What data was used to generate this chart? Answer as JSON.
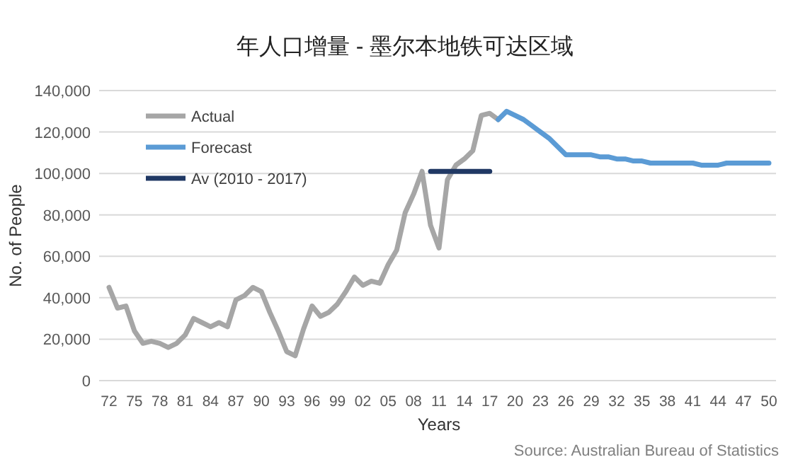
{
  "chart_data": {
    "type": "line",
    "title": "年人口增量 - 墨尔本地铁可达区域",
    "xlabel": "Years",
    "ylabel": "No. of People",
    "annotations": [
      "Source: Australian Bureau of Statistics"
    ],
    "categories": [
      "72",
      null,
      null,
      "75",
      null,
      null,
      "78",
      null,
      null,
      "81",
      null,
      null,
      "84",
      null,
      null,
      "87",
      null,
      null,
      "90",
      null,
      null,
      "93",
      null,
      null,
      "96",
      null,
      null,
      "99",
      null,
      null,
      "02",
      null,
      null,
      "05",
      null,
      null,
      "08",
      null,
      null,
      "11",
      null,
      null,
      "14",
      null,
      null,
      "17",
      null,
      null,
      "20",
      null,
      null,
      "23",
      null,
      null,
      "26",
      null,
      null,
      "29",
      null,
      null,
      "32",
      null,
      null,
      "35",
      null,
      null,
      "38",
      null,
      null,
      "41",
      null,
      null,
      "44",
      null,
      null,
      "47",
      null,
      null,
      "50"
    ],
    "ylim": [
      0,
      140000
    ],
    "yticks": [
      {
        "value": 0,
        "label": "0"
      },
      {
        "value": 20000,
        "label": "20,000"
      },
      {
        "value": 40000,
        "label": "40,000"
      },
      {
        "value": 60000,
        "label": "60,000"
      },
      {
        "value": 80000,
        "label": "80,000"
      },
      {
        "value": 100000,
        "label": "100,000"
      },
      {
        "value": 120000,
        "label": "120,000"
      },
      {
        "value": 140000,
        "label": "140,000"
      }
    ],
    "grid": "y",
    "legend": "top left",
    "line_style": "solid",
    "marker": "none",
    "series": [
      {
        "name": "Actual",
        "color": "#a6a6a6",
        "values": [
          45000,
          35000,
          36000,
          24000,
          18000,
          19000,
          18000,
          16000,
          18000,
          22000,
          30000,
          28000,
          26000,
          28000,
          26000,
          39000,
          41000,
          45000,
          43000,
          33000,
          24000,
          14000,
          12000,
          25000,
          36000,
          31000,
          33000,
          37000,
          43000,
          50000,
          46000,
          48000,
          47000,
          56000,
          63000,
          81000,
          90000,
          101000,
          75000,
          64000,
          97000,
          104000,
          107000,
          111000,
          128000,
          129000,
          126000,
          null,
          null,
          null,
          null,
          null,
          null,
          null,
          null,
          null,
          null,
          null,
          null,
          null,
          null,
          null,
          null,
          null,
          null,
          null,
          null,
          null,
          null,
          null,
          null,
          null,
          null,
          null,
          null,
          null,
          null,
          null,
          null
        ]
      },
      {
        "name": "Forecast",
        "color": "#5b9bd5",
        "values": [
          null,
          null,
          null,
          null,
          null,
          null,
          null,
          null,
          null,
          null,
          null,
          null,
          null,
          null,
          null,
          null,
          null,
          null,
          null,
          null,
          null,
          null,
          null,
          null,
          null,
          null,
          null,
          null,
          null,
          null,
          null,
          null,
          null,
          null,
          null,
          null,
          null,
          null,
          null,
          null,
          null,
          null,
          null,
          null,
          null,
          null,
          126000,
          130000,
          128000,
          126000,
          123000,
          120000,
          117000,
          113000,
          109000,
          109000,
          109000,
          109000,
          108000,
          108000,
          107000,
          107000,
          106000,
          106000,
          105000,
          105000,
          105000,
          105000,
          105000,
          105000,
          104000,
          104000,
          104000,
          105000,
          105000,
          105000,
          105000,
          105000,
          105000
        ]
      },
      {
        "name": "Av (2010 - 2017)",
        "color": "#203864",
        "values": [
          null,
          null,
          null,
          null,
          null,
          null,
          null,
          null,
          null,
          null,
          null,
          null,
          null,
          null,
          null,
          null,
          null,
          null,
          null,
          null,
          null,
          null,
          null,
          null,
          null,
          null,
          null,
          null,
          null,
          null,
          null,
          null,
          null,
          null,
          null,
          null,
          null,
          null,
          101000,
          101000,
          101000,
          101000,
          101000,
          101000,
          101000,
          101000,
          null,
          null,
          null,
          null,
          null,
          null,
          null,
          null,
          null,
          null,
          null,
          null,
          null,
          null,
          null,
          null,
          null,
          null,
          null,
          null,
          null,
          null,
          null,
          null,
          null,
          null,
          null,
          null,
          null,
          null,
          null,
          null,
          null
        ]
      }
    ]
  }
}
